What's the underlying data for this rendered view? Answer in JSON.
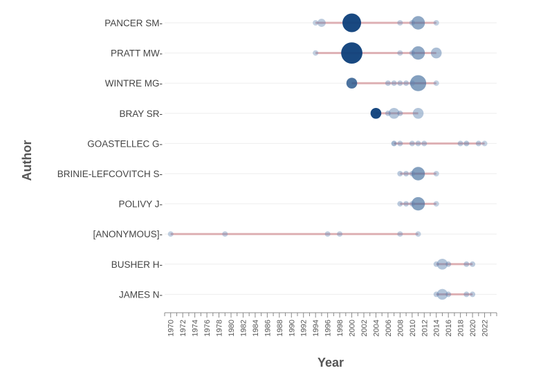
{
  "chart_data": {
    "type": "scatter",
    "subtype": "author-production-over-time",
    "xlabel": "Year",
    "ylabel": "Author",
    "xlim": [
      1969,
      2024
    ],
    "x_ticks": [
      1970,
      1972,
      1974,
      1976,
      1978,
      1980,
      1982,
      1984,
      1986,
      1988,
      1990,
      1992,
      1994,
      1996,
      1998,
      2000,
      2002,
      2004,
      2006,
      2008,
      2010,
      2012,
      2014,
      2016,
      2018,
      2020,
      2022
    ],
    "grid": true,
    "colors": {
      "point_light": "#7b9cc4",
      "point_dark": "#0d3f7a",
      "line": "#d9a3a8",
      "axis": "#888888",
      "grid": "#eeeeee"
    },
    "authors": [
      {
        "name": "PANCER SM",
        "start": 1994,
        "end": 2014,
        "points": [
          {
            "year": 1994,
            "size": 1,
            "shade": 0.2
          },
          {
            "year": 1995,
            "size": 2,
            "shade": 0.25
          },
          {
            "year": 2000,
            "size": 6,
            "shade": 1.0
          },
          {
            "year": 2008,
            "size": 1,
            "shade": 0.2
          },
          {
            "year": 2010,
            "size": 1,
            "shade": 0.25
          },
          {
            "year": 2011,
            "size": 4,
            "shade": 0.5
          },
          {
            "year": 2014,
            "size": 1,
            "shade": 0.2
          }
        ]
      },
      {
        "name": "PRATT MW",
        "start": 1994,
        "end": 2014,
        "points": [
          {
            "year": 1994,
            "size": 1,
            "shade": 0.2
          },
          {
            "year": 2000,
            "size": 7,
            "shade": 1.0
          },
          {
            "year": 2008,
            "size": 1,
            "shade": 0.2
          },
          {
            "year": 2010,
            "size": 1,
            "shade": 0.25
          },
          {
            "year": 2011,
            "size": 4,
            "shade": 0.5
          },
          {
            "year": 2014,
            "size": 3,
            "shade": 0.35
          }
        ]
      },
      {
        "name": "WINTRE MG",
        "start": 2000,
        "end": 2014,
        "points": [
          {
            "year": 2000,
            "size": 3,
            "shade": 0.8
          },
          {
            "year": 2006,
            "size": 1,
            "shade": 0.25
          },
          {
            "year": 2007,
            "size": 1,
            "shade": 0.25
          },
          {
            "year": 2008,
            "size": 1,
            "shade": 0.25
          },
          {
            "year": 2009,
            "size": 1,
            "shade": 0.25
          },
          {
            "year": 2010,
            "size": 1,
            "shade": 0.25
          },
          {
            "year": 2011,
            "size": 5,
            "shade": 0.55
          },
          {
            "year": 2014,
            "size": 1,
            "shade": 0.2
          }
        ]
      },
      {
        "name": "BRAY SR",
        "start": 2004,
        "end": 2011,
        "points": [
          {
            "year": 2004,
            "size": 3,
            "shade": 1.0
          },
          {
            "year": 2006,
            "size": 1,
            "shade": 0.25
          },
          {
            "year": 2007,
            "size": 3,
            "shade": 0.3
          },
          {
            "year": 2008,
            "size": 1,
            "shade": 0.25
          },
          {
            "year": 2011,
            "size": 3,
            "shade": 0.3
          }
        ]
      },
      {
        "name": "GOASTELLEC G",
        "start": 2007,
        "end": 2022,
        "points": [
          {
            "year": 2007,
            "size": 1,
            "shade": 0.4
          },
          {
            "year": 2008,
            "size": 1,
            "shade": 0.25
          },
          {
            "year": 2010,
            "size": 1,
            "shade": 0.25
          },
          {
            "year": 2011,
            "size": 1,
            "shade": 0.25
          },
          {
            "year": 2012,
            "size": 1,
            "shade": 0.25
          },
          {
            "year": 2018,
            "size": 1,
            "shade": 0.25
          },
          {
            "year": 2019,
            "size": 1,
            "shade": 0.3
          },
          {
            "year": 2021,
            "size": 1,
            "shade": 0.25
          },
          {
            "year": 2022,
            "size": 1,
            "shade": 0.2
          }
        ]
      },
      {
        "name": "BRINIE-LEFCOVITCH S",
        "start": 2008,
        "end": 2014,
        "points": [
          {
            "year": 2008,
            "size": 1,
            "shade": 0.25
          },
          {
            "year": 2009,
            "size": 1,
            "shade": 0.25
          },
          {
            "year": 2010,
            "size": 1,
            "shade": 0.25
          },
          {
            "year": 2011,
            "size": 4,
            "shade": 0.55
          },
          {
            "year": 2014,
            "size": 1,
            "shade": 0.2
          }
        ]
      },
      {
        "name": "POLIVY J",
        "start": 2008,
        "end": 2014,
        "points": [
          {
            "year": 2008,
            "size": 1,
            "shade": 0.25
          },
          {
            "year": 2009,
            "size": 1,
            "shade": 0.25
          },
          {
            "year": 2010,
            "size": 1,
            "shade": 0.25
          },
          {
            "year": 2011,
            "size": 4,
            "shade": 0.55
          },
          {
            "year": 2014,
            "size": 1,
            "shade": 0.2
          }
        ]
      },
      {
        "name": "[ANONYMOUS]",
        "start": 1970,
        "end": 2011,
        "points": [
          {
            "year": 1970,
            "size": 1,
            "shade": 0.2
          },
          {
            "year": 1979,
            "size": 1,
            "shade": 0.2
          },
          {
            "year": 1996,
            "size": 1,
            "shade": 0.2
          },
          {
            "year": 1998,
            "size": 1,
            "shade": 0.2
          },
          {
            "year": 2008,
            "size": 1,
            "shade": 0.2
          },
          {
            "year": 2011,
            "size": 1,
            "shade": 0.2
          }
        ]
      },
      {
        "name": "BUSHER H",
        "start": 2014,
        "end": 2020,
        "points": [
          {
            "year": 2014,
            "size": 1,
            "shade": 0.25
          },
          {
            "year": 2015,
            "size": 3,
            "shade": 0.3
          },
          {
            "year": 2016,
            "size": 1,
            "shade": 0.25
          },
          {
            "year": 2019,
            "size": 1,
            "shade": 0.25
          },
          {
            "year": 2020,
            "size": 1,
            "shade": 0.25
          }
        ]
      },
      {
        "name": "JAMES N",
        "start": 2014,
        "end": 2020,
        "points": [
          {
            "year": 2014,
            "size": 1,
            "shade": 0.25
          },
          {
            "year": 2015,
            "size": 3,
            "shade": 0.3
          },
          {
            "year": 2016,
            "size": 1,
            "shade": 0.25
          },
          {
            "year": 2019,
            "size": 1,
            "shade": 0.25
          },
          {
            "year": 2020,
            "size": 1,
            "shade": 0.25
          }
        ]
      }
    ]
  }
}
